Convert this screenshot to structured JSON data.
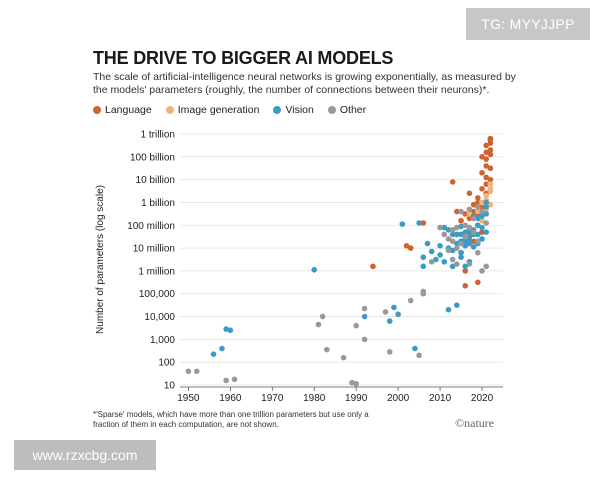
{
  "watermark_top": "TG: MYYJJPP",
  "watermark_bottom": "www.rzxcbg.com",
  "chart_data": {
    "type": "scatter",
    "title": "THE DRIVE TO BIGGER AI MODELS",
    "subtitle": "The scale of artificial-intelligence neural networks is growing exponentially, as measured by the models' parameters (roughly, the number of connections between their neurons)*.",
    "xlabel": "",
    "ylabel": "Number of parameters (log scale)",
    "xlim": [
      1948,
      2025
    ],
    "ylim_log10": [
      1,
      12
    ],
    "x_ticks": [
      1950,
      1960,
      1970,
      1980,
      1990,
      2000,
      2010,
      2020
    ],
    "y_ticks": [
      {
        "log10": 12,
        "label": "1 trillion"
      },
      {
        "log10": 11,
        "label": "100 billion"
      },
      {
        "log10": 10,
        "label": "10 billion"
      },
      {
        "log10": 9,
        "label": "1 billion"
      },
      {
        "log10": 8,
        "label": "100 million"
      },
      {
        "log10": 7,
        "label": "10 million"
      },
      {
        "log10": 6,
        "label": "1 million"
      },
      {
        "log10": 5,
        "label": "100,000"
      },
      {
        "log10": 4,
        "label": "10,000"
      },
      {
        "log10": 3,
        "label": "1,000"
      },
      {
        "log10": 2,
        "label": "100"
      },
      {
        "log10": 1,
        "label": "10"
      }
    ],
    "legend": [
      {
        "name": "Language",
        "color": "#d0622f"
      },
      {
        "name": "Image generation",
        "color": "#f2b27a"
      },
      {
        "name": "Vision",
        "color": "#3a9bc7"
      },
      {
        "name": "Other",
        "color": "#999999"
      }
    ],
    "series": [
      {
        "name": "Language",
        "color": "#d0622f",
        "points": [
          [
            1994,
            6.2
          ],
          [
            2002,
            7.1
          ],
          [
            2003,
            7.0
          ],
          [
            2006,
            8.1
          ],
          [
            2013,
            9.9
          ],
          [
            2014,
            8.6
          ],
          [
            2015,
            8.2
          ],
          [
            2015,
            6.8
          ],
          [
            2016,
            8.5
          ],
          [
            2016,
            6.0
          ],
          [
            2016,
            5.35
          ],
          [
            2017,
            9.4
          ],
          [
            2017,
            8.3
          ],
          [
            2017,
            7.7
          ],
          [
            2018,
            8.6
          ],
          [
            2018,
            8.9
          ],
          [
            2018,
            7.3
          ],
          [
            2019,
            9.2
          ],
          [
            2019,
            8.5
          ],
          [
            2019,
            8.0
          ],
          [
            2019,
            9.0
          ],
          [
            2019,
            5.5
          ],
          [
            2020,
            8.8
          ],
          [
            2020,
            9.6
          ],
          [
            2020,
            10.3
          ],
          [
            2020,
            11.0
          ],
          [
            2020,
            7.7
          ],
          [
            2021,
            9.8
          ],
          [
            2021,
            10.1
          ],
          [
            2021,
            10.6
          ],
          [
            2021,
            11.2
          ],
          [
            2021,
            11.5
          ],
          [
            2021,
            10.9
          ],
          [
            2021,
            9.4
          ],
          [
            2022,
            11.3
          ],
          [
            2022,
            11.6
          ],
          [
            2022,
            11.8
          ],
          [
            2022,
            10.5
          ],
          [
            2022,
            10.0
          ],
          [
            2022,
            11.1
          ],
          [
            2022,
            9.5
          ],
          [
            2022,
            11.75
          ]
        ]
      },
      {
        "name": "Image generation",
        "color": "#f2b27a",
        "points": [
          [
            2014,
            7.6
          ],
          [
            2017,
            8.5
          ],
          [
            2018,
            8.4
          ],
          [
            2019,
            8.6
          ],
          [
            2020,
            9.0
          ],
          [
            2020,
            8.2
          ],
          [
            2021,
            9.1
          ],
          [
            2021,
            9.3
          ],
          [
            2021,
            8.7
          ],
          [
            2022,
            9.5
          ],
          [
            2022,
            9.8
          ],
          [
            2022,
            8.9
          ],
          [
            2022,
            9.6
          ]
        ]
      },
      {
        "name": "Vision",
        "color": "#3a9bc7",
        "points": [
          [
            1956,
            2.35
          ],
          [
            1958,
            2.6
          ],
          [
            1959,
            3.45
          ],
          [
            1960,
            3.4
          ],
          [
            1980,
            6.05
          ],
          [
            1992,
            4.0
          ],
          [
            1998,
            3.8
          ],
          [
            1999,
            4.4
          ],
          [
            2000,
            4.1
          ],
          [
            2001,
            8.05
          ],
          [
            2004,
            2.6
          ],
          [
            2005,
            8.1
          ],
          [
            2006,
            6.6
          ],
          [
            2006,
            6.2
          ],
          [
            2007,
            7.2
          ],
          [
            2008,
            6.85
          ],
          [
            2009,
            6.5
          ],
          [
            2010,
            7.1
          ],
          [
            2010,
            6.7
          ],
          [
            2011,
            7.9
          ],
          [
            2011,
            6.4
          ],
          [
            2012,
            7.8
          ],
          [
            2012,
            7.0
          ],
          [
            2012,
            4.3
          ],
          [
            2013,
            7.6
          ],
          [
            2013,
            6.9
          ],
          [
            2013,
            6.2
          ],
          [
            2014,
            7.6
          ],
          [
            2014,
            7.2
          ],
          [
            2014,
            4.5
          ],
          [
            2015,
            7.6
          ],
          [
            2015,
            7.3
          ],
          [
            2015,
            7.95
          ],
          [
            2015,
            6.6
          ],
          [
            2015,
            6.8
          ],
          [
            2016,
            7.7
          ],
          [
            2016,
            7.45
          ],
          [
            2016,
            7.3
          ],
          [
            2016,
            7.1
          ],
          [
            2016,
            6.2
          ],
          [
            2017,
            7.8
          ],
          [
            2017,
            7.35
          ],
          [
            2017,
            7.5
          ],
          [
            2017,
            7.2
          ],
          [
            2017,
            6.4
          ],
          [
            2018,
            7.8
          ],
          [
            2018,
            7.6
          ],
          [
            2018,
            8.4
          ],
          [
            2018,
            7.05
          ],
          [
            2019,
            8.0
          ],
          [
            2019,
            7.6
          ],
          [
            2019,
            7.2
          ],
          [
            2019,
            8.3
          ],
          [
            2020,
            8.4
          ],
          [
            2020,
            7.9
          ],
          [
            2020,
            7.4
          ],
          [
            2021,
            8.8
          ],
          [
            2021,
            9.0
          ],
          [
            2021,
            8.5
          ],
          [
            2021,
            7.7
          ]
        ]
      },
      {
        "name": "Other",
        "color": "#999999",
        "points": [
          [
            1950,
            1.6
          ],
          [
            1952,
            1.6
          ],
          [
            1959,
            1.2
          ],
          [
            1961,
            1.25
          ],
          [
            1981,
            3.65
          ],
          [
            1982,
            4.0
          ],
          [
            1983,
            2.55
          ],
          [
            1987,
            2.2
          ],
          [
            1989,
            1.1
          ],
          [
            1990,
            1.05
          ],
          [
            1990,
            3.6
          ],
          [
            1992,
            4.35
          ],
          [
            1992,
            3.0
          ],
          [
            1997,
            4.2
          ],
          [
            1998,
            2.45
          ],
          [
            2003,
            4.7
          ],
          [
            2005,
            2.3
          ],
          [
            2006,
            5.1
          ],
          [
            2006,
            5.0
          ],
          [
            2008,
            6.4
          ],
          [
            2010,
            7.9
          ],
          [
            2011,
            7.6
          ],
          [
            2012,
            7.4
          ],
          [
            2012,
            6.9
          ],
          [
            2013,
            7.8
          ],
          [
            2013,
            7.3
          ],
          [
            2013,
            6.5
          ],
          [
            2014,
            7.9
          ],
          [
            2014,
            7.0
          ],
          [
            2014,
            6.3
          ],
          [
            2015,
            8.6
          ],
          [
            2015,
            7.2
          ],
          [
            2016,
            8.0
          ],
          [
            2016,
            7.5
          ],
          [
            2017,
            8.7
          ],
          [
            2017,
            7.9
          ],
          [
            2017,
            6.3
          ],
          [
            2018,
            8.3
          ],
          [
            2018,
            7.7
          ],
          [
            2019,
            8.8
          ],
          [
            2019,
            7.3
          ],
          [
            2019,
            6.8
          ],
          [
            2020,
            8.6
          ],
          [
            2020,
            6.0
          ],
          [
            2021,
            8.1
          ],
          [
            2021,
            6.2
          ]
        ]
      }
    ]
  },
  "footnote": "*'Sparse' models, which have more than one trillion parameters but use only a fraction of them in each computation, are not shown.",
  "source_logo": "©nature"
}
